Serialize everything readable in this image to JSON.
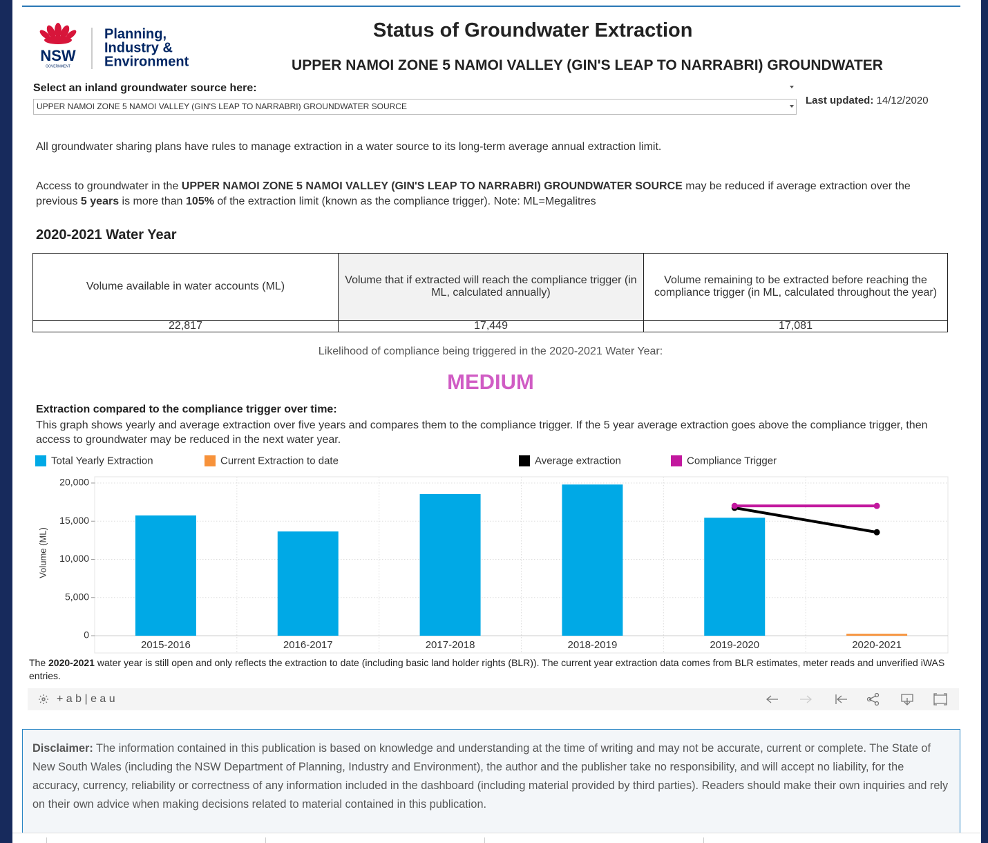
{
  "header": {
    "logo_mark": "NSW",
    "logo_gov": "GOVERNMENT",
    "logo_lines": [
      "Planning,",
      "Industry &",
      "Environment"
    ],
    "title": "Status of Groundwater Extraction",
    "subtitle": "UPPER NAMOI ZONE 5 NAMOI VALLEY (GIN'S LEAP TO NARRABRI) GROUNDWATER"
  },
  "selector": {
    "label": "Select an inland groundwater source here:",
    "value": "UPPER NAMOI ZONE 5 NAMOI VALLEY (GIN'S LEAP TO NARRABRI) GROUNDWATER SOURCE",
    "updated_label": "Last updated:",
    "updated_value": "14/12/2020"
  },
  "intro": {
    "p1": "All groundwater sharing plans have rules to manage extraction in a water source to its long-term average annual extraction limit.",
    "p2": [
      "Access to groundwater in the ",
      "UPPER NAMOI ZONE 5 NAMOI VALLEY (GIN'S LEAP TO NARRABRI) GROUNDWATER SOURCE",
      " may be reduced if average extraction over the previous ",
      "5 years",
      " is more than ",
      "105%",
      " of the extraction limit (known as the compliance trigger). Note: ML=Megalitres"
    ]
  },
  "water_year": {
    "heading": "2020-2021 Water Year",
    "table": {
      "headers": [
        "Volume available in water accounts (ML)",
        "Volume that if extracted will reach the compliance trigger (in ML, calculated annually)",
        "Volume remaining to be extracted before reaching the compliance trigger (in ML, calculated throughout the year)"
      ],
      "rows": [
        [
          "22,817",
          "17,449",
          "17,081"
        ]
      ]
    },
    "likelihood_label": "Likelihood of compliance being triggered in the 2020-2021 Water Year:",
    "likelihood": "MEDIUM"
  },
  "chart_intro": {
    "title": "Extraction compared to the compliance trigger over time:",
    "description": "This graph shows yearly and average extraction over five years and compares them to the compliance trigger. If the 5 year average extraction goes above the compliance trigger, then access to groundwater may be reduced in the next water year."
  },
  "chart_data": {
    "type": "bar",
    "ylabel": "Volume (ML)",
    "categories": [
      "2015-2016",
      "2016-2017",
      "2017-2018",
      "2018-2019",
      "2019-2020",
      "2020-2021"
    ],
    "series": [
      {
        "name": "Total Yearly Extraction",
        "color": "#00a9e6",
        "type": "bar",
        "values": [
          15750,
          13650,
          18550,
          19800,
          15450,
          null
        ]
      },
      {
        "name": "Current Extraction to date",
        "color": "#f7923a",
        "type": "bar",
        "values": [
          null,
          null,
          null,
          null,
          null,
          250
        ]
      },
      {
        "name": "Average extraction",
        "color": "#000000",
        "type": "line",
        "values": [
          null,
          null,
          null,
          null,
          16750,
          13550
        ]
      },
      {
        "name": "Compliance Trigger",
        "color": "#c2189e",
        "type": "line",
        "values": [
          null,
          null,
          null,
          null,
          17000,
          17000
        ]
      }
    ],
    "ylim": [
      0,
      20000
    ],
    "yticks": [
      0,
      {
        "value": 5000,
        "label": "5,000"
      },
      {
        "value": 10000,
        "label": "10,000"
      },
      {
        "value": 15000,
        "label": "15,000"
      },
      {
        "value": 20000,
        "label": "20,000"
      }
    ],
    "grid": true
  },
  "footnote": [
    "The ",
    "2020-2021",
    " water year is still open and only reflects the extraction to date (including basic land holder rights (BLR)). The current year extraction data comes from BLR estimates, meter reads and unverified iWAS entries."
  ],
  "toolbar": {
    "brand": "+ a b | e a u"
  },
  "disclaimer": [
    "Disclaimer:",
    " The information contained in this publication is based on knowledge and understanding at the time of writing and may not be accurate, current or complete. The State of New South Wales (including the NSW Department of Planning, Industry and Environment), the author and the publisher take no responsibility, and will accept no liability, for the accuracy, currency, reliability or correctness of any information included in the dashboard (including material provided by third parties). Readers should make their own inquiries and rely on their own advice when making decisions related to material contained in this publication."
  ]
}
